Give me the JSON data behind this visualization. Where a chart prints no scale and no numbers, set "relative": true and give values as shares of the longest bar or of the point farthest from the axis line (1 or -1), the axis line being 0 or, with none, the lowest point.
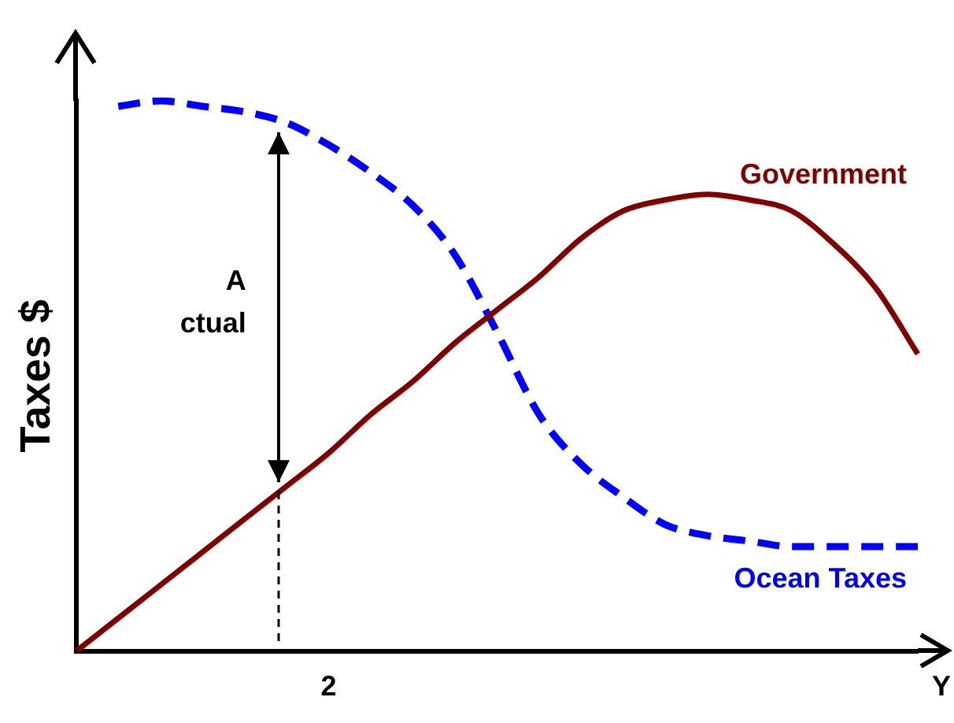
{
  "chart_data": {
    "type": "line",
    "relative": true,
    "ylabel": "Taxes $",
    "xlabel": "Y",
    "categories": [
      null,
      null,
      null,
      null,
      null,
      null,
      null,
      null,
      null,
      null,
      null,
      null,
      null,
      null,
      null,
      null,
      null,
      null,
      null,
      null,
      null
    ],
    "series": [
      {
        "name": "Government",
        "color": "#800000",
        "line_style": "solid",
        "values": [
          0,
          0.06,
          0.12,
          0.18,
          0.24,
          0.3,
          0.36,
          0.43,
          0.49,
          0.56,
          0.62,
          0.68,
          0.75,
          0.8,
          0.82,
          0.83,
          0.82,
          0.8,
          0.74,
          0.66,
          0.54
        ]
      },
      {
        "name": "Ocean Taxes",
        "color": "#0000ff",
        "line_style": "dashed",
        "values": [
          null,
          0.99,
          1.0,
          0.99,
          0.98,
          0.96,
          0.92,
          0.87,
          0.81,
          0.72,
          0.58,
          0.43,
          0.34,
          0.28,
          0.23,
          0.21,
          0.2,
          0.19,
          0.19,
          0.19,
          0.19
        ]
      }
    ],
    "annotations": [
      "A",
      "ctual",
      "2"
    ],
    "marker": "none",
    "legend": false,
    "grid": false
  }
}
